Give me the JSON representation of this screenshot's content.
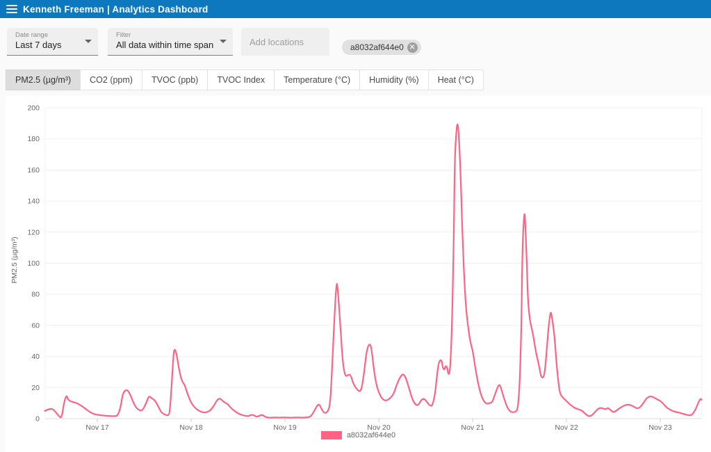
{
  "header": {
    "title": "Kenneth Freeman | Analytics Dashboard"
  },
  "filters": {
    "date_range": {
      "label": "Date range",
      "value": "Last 7 days"
    },
    "filter": {
      "label": "Filter",
      "value": "All data within time span"
    },
    "locations": {
      "placeholder": "Add locations"
    },
    "location_chip": {
      "label": "a8032af644e0",
      "close_glyph": "✕"
    }
  },
  "tabs": [
    {
      "label": "PM2.5 (µg/m³)",
      "active": true
    },
    {
      "label": "CO2 (ppm)",
      "active": false
    },
    {
      "label": "TVOC (ppb)",
      "active": false
    },
    {
      "label": "TVOC Index",
      "active": false
    },
    {
      "label": "Temperature (°C)",
      "active": false
    },
    {
      "label": "Humidity (%)",
      "active": false
    },
    {
      "label": "Heat (°C)",
      "active": false
    }
  ],
  "colors": {
    "header_bg": "#0e78be",
    "series": "#ff6384",
    "grid": "#f0f0f0",
    "axis_line": "#dddddd",
    "tick": "#cccccc",
    "tick_text": "#666666"
  },
  "chart_data": {
    "type": "line",
    "title": "",
    "xlabel": "",
    "ylabel": "PM2.5 (µg/m³)",
    "ylim": [
      0,
      200
    ],
    "ytick_step": 20,
    "grid": true,
    "legend_position": "bottom",
    "x_axis": "time (days of Nov)",
    "x_range_days": [
      16.444,
      23.444
    ],
    "x_tick_days": [
      17,
      18,
      19,
      20,
      21,
      22,
      23
    ],
    "x_tick_labels": [
      "Nov 17",
      "Nov 18",
      "Nov 19",
      "Nov 20",
      "Nov 21",
      "Nov 22",
      "Nov 23"
    ],
    "series": [
      {
        "name": "a8032af644e0",
        "color": "#ff6384",
        "points": [
          [
            16.44,
            5
          ],
          [
            16.48,
            6
          ],
          [
            16.52,
            6.5
          ],
          [
            16.56,
            4
          ],
          [
            16.59,
            1.5
          ],
          [
            16.62,
            0.3
          ],
          [
            16.64,
            9
          ],
          [
            16.67,
            15.5
          ],
          [
            16.69,
            12
          ],
          [
            16.72,
            11
          ],
          [
            16.75,
            10.5
          ],
          [
            16.78,
            10
          ],
          [
            16.84,
            8
          ],
          [
            16.9,
            5
          ],
          [
            16.96,
            3
          ],
          [
            17,
            2.5
          ],
          [
            17.06,
            2
          ],
          [
            17.12,
            1.8
          ],
          [
            17.18,
            1.5
          ],
          [
            17.22,
            2
          ],
          [
            17.25,
            8
          ],
          [
            17.27,
            16
          ],
          [
            17.3,
            18.5
          ],
          [
            17.33,
            18
          ],
          [
            17.36,
            14
          ],
          [
            17.4,
            8
          ],
          [
            17.44,
            5.5
          ],
          [
            17.48,
            5
          ],
          [
            17.52,
            10
          ],
          [
            17.55,
            14.8
          ],
          [
            17.58,
            13
          ],
          [
            17.61,
            12
          ],
          [
            17.64,
            9
          ],
          [
            17.68,
            4
          ],
          [
            17.72,
            2.5
          ],
          [
            17.75,
            2
          ],
          [
            17.77,
            3
          ],
          [
            17.79,
            20
          ],
          [
            17.81,
            40
          ],
          [
            17.82,
            45
          ],
          [
            17.84,
            43
          ],
          [
            17.87,
            32
          ],
          [
            17.9,
            24
          ],
          [
            17.93,
            22
          ],
          [
            17.96,
            16
          ],
          [
            18,
            10
          ],
          [
            18.04,
            7
          ],
          [
            18.08,
            5
          ],
          [
            18.13,
            4
          ],
          [
            18.16,
            4
          ],
          [
            18.2,
            5
          ],
          [
            18.24,
            8
          ],
          [
            18.28,
            12.5
          ],
          [
            18.31,
            13
          ],
          [
            18.35,
            10.5
          ],
          [
            18.39,
            9.5
          ],
          [
            18.42,
            7
          ],
          [
            18.47,
            4.5
          ],
          [
            18.51,
            3
          ],
          [
            18.56,
            2
          ],
          [
            18.61,
            1.5
          ],
          [
            18.64,
            2.5
          ],
          [
            18.67,
            2.2
          ],
          [
            18.7,
            1
          ],
          [
            18.73,
            2
          ],
          [
            18.76,
            2.5
          ],
          [
            18.79,
            1
          ],
          [
            18.84,
            0.5
          ],
          [
            18.89,
            0.8
          ],
          [
            18.94,
            0.6
          ],
          [
            19,
            0.8
          ],
          [
            19.06,
            0.5
          ],
          [
            19.12,
            0.8
          ],
          [
            19.18,
            0.6
          ],
          [
            19.24,
            0.8
          ],
          [
            19.28,
            1.5
          ],
          [
            19.32,
            6
          ],
          [
            19.36,
            10
          ],
          [
            19.39,
            6
          ],
          [
            19.42,
            3.5
          ],
          [
            19.45,
            4
          ],
          [
            19.48,
            8
          ],
          [
            19.5,
            30
          ],
          [
            19.53,
            70
          ],
          [
            19.55,
            88
          ],
          [
            19.56,
            85
          ],
          [
            19.59,
            60
          ],
          [
            19.61,
            40
          ],
          [
            19.63,
            30
          ],
          [
            19.65,
            27
          ],
          [
            19.68,
            28.5
          ],
          [
            19.7,
            28
          ],
          [
            19.73,
            22
          ],
          [
            19.77,
            18.5
          ],
          [
            19.81,
            17
          ],
          [
            19.84,
            28
          ],
          [
            19.87,
            44
          ],
          [
            19.9,
            48.5
          ],
          [
            19.92,
            46
          ],
          [
            19.95,
            30
          ],
          [
            19.98,
            20
          ],
          [
            20.02,
            14
          ],
          [
            20.05,
            12
          ],
          [
            20.08,
            11.5
          ],
          [
            20.12,
            13
          ],
          [
            20.16,
            16
          ],
          [
            20.19,
            22
          ],
          [
            20.23,
            27
          ],
          [
            20.26,
            29
          ],
          [
            20.29,
            26
          ],
          [
            20.33,
            18
          ],
          [
            20.36,
            12
          ],
          [
            20.39,
            9
          ],
          [
            20.42,
            8.5
          ],
          [
            20.45,
            12
          ],
          [
            20.48,
            13
          ],
          [
            20.51,
            11
          ],
          [
            20.54,
            8.5
          ],
          [
            20.57,
            8
          ],
          [
            20.6,
            16
          ],
          [
            20.62,
            28
          ],
          [
            20.64,
            37
          ],
          [
            20.67,
            38
          ],
          [
            20.68,
            33
          ],
          [
            20.7,
            31
          ],
          [
            20.71,
            34
          ],
          [
            20.73,
            33
          ],
          [
            20.74,
            28
          ],
          [
            20.76,
            30
          ],
          [
            20.78,
            60
          ],
          [
            20.8,
            120
          ],
          [
            20.81,
            170
          ],
          [
            20.83,
            188
          ],
          [
            20.84,
            190
          ],
          [
            20.85,
            185
          ],
          [
            20.87,
            160
          ],
          [
            20.89,
            120
          ],
          [
            20.91,
            90
          ],
          [
            20.93,
            70
          ],
          [
            20.96,
            55
          ],
          [
            20.98,
            48
          ],
          [
            21,
            44
          ],
          [
            21.03,
            32
          ],
          [
            21.06,
            22
          ],
          [
            21.09,
            15
          ],
          [
            21.12,
            11
          ],
          [
            21.15,
            9.5
          ],
          [
            21.18,
            10
          ],
          [
            21.21,
            10.5
          ],
          [
            21.24,
            16
          ],
          [
            21.27,
            21
          ],
          [
            21.29,
            22
          ],
          [
            21.31,
            18
          ],
          [
            21.34,
            12
          ],
          [
            21.37,
            7
          ],
          [
            21.4,
            4.5
          ],
          [
            21.43,
            4
          ],
          [
            21.46,
            4.5
          ],
          [
            21.48,
            6
          ],
          [
            21.5,
            20
          ],
          [
            21.52,
            60
          ],
          [
            21.53,
            110
          ],
          [
            21.55,
            134
          ],
          [
            21.56,
            128
          ],
          [
            21.58,
            95
          ],
          [
            21.59,
            75
          ],
          [
            21.61,
            63
          ],
          [
            21.63,
            58
          ],
          [
            21.65,
            52
          ],
          [
            21.67,
            44
          ],
          [
            21.7,
            36
          ],
          [
            21.72,
            30
          ],
          [
            21.73,
            27
          ],
          [
            21.75,
            26
          ],
          [
            21.77,
            30
          ],
          [
            21.79,
            45
          ],
          [
            21.81,
            60
          ],
          [
            21.83,
            69
          ],
          [
            21.84,
            67
          ],
          [
            21.87,
            55
          ],
          [
            21.89,
            38
          ],
          [
            21.91,
            25
          ],
          [
            21.93,
            16
          ],
          [
            21.96,
            13.5
          ],
          [
            21.99,
            12
          ],
          [
            22.02,
            10
          ],
          [
            22.06,
            8
          ],
          [
            22.1,
            6.5
          ],
          [
            22.13,
            6
          ],
          [
            22.17,
            5
          ],
          [
            22.21,
            2.5
          ],
          [
            22.24,
            1.5
          ],
          [
            22.27,
            2
          ],
          [
            22.3,
            4
          ],
          [
            22.33,
            6
          ],
          [
            22.36,
            7
          ],
          [
            22.39,
            6.5
          ],
          [
            22.42,
            6
          ],
          [
            22.44,
            7
          ],
          [
            22.47,
            5.5
          ],
          [
            22.5,
            4
          ],
          [
            22.53,
            5
          ],
          [
            22.56,
            6.5
          ],
          [
            22.6,
            8
          ],
          [
            22.64,
            9
          ],
          [
            22.67,
            9
          ],
          [
            22.71,
            8
          ],
          [
            22.75,
            6.5
          ],
          [
            22.78,
            7
          ],
          [
            22.82,
            10
          ],
          [
            22.85,
            13
          ],
          [
            22.89,
            14.5
          ],
          [
            22.92,
            14
          ],
          [
            22.95,
            13
          ],
          [
            22.98,
            12
          ],
          [
            23.01,
            11
          ],
          [
            23.04,
            9
          ],
          [
            23.07,
            7
          ],
          [
            23.11,
            5.5
          ],
          [
            23.15,
            4.5
          ],
          [
            23.19,
            4
          ],
          [
            23.22,
            3.5
          ],
          [
            23.26,
            2.8
          ],
          [
            23.3,
            2.2
          ],
          [
            23.33,
            2
          ],
          [
            23.37,
            5
          ],
          [
            23.41,
            11
          ],
          [
            23.43,
            13
          ],
          [
            23.44,
            12
          ]
        ]
      }
    ]
  }
}
